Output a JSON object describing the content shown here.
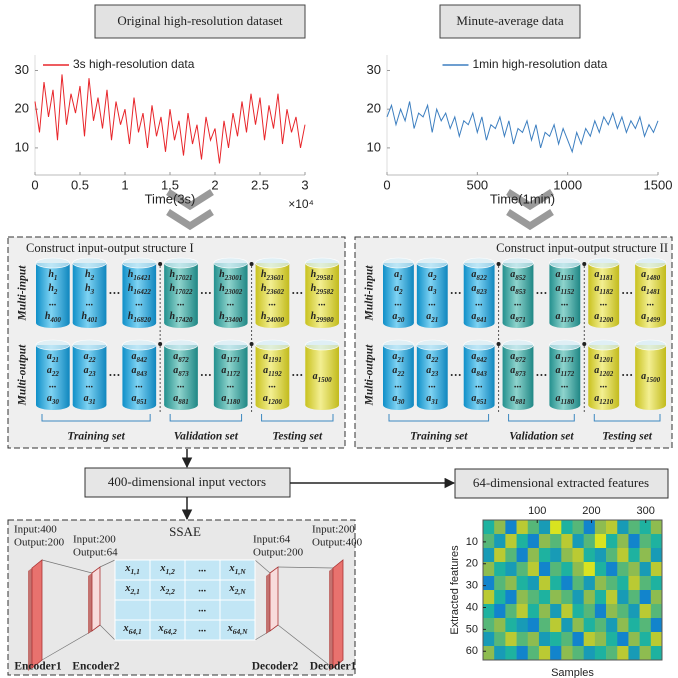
{
  "header": {
    "left_title": "Original high-resolution dataset",
    "right_title": "Minute-average data"
  },
  "chart_data": [
    {
      "type": "line",
      "x_label": "Time(3s)",
      "x_scale_label": "×10⁴",
      "x": [
        0,
        0.05,
        0.1,
        0.15,
        0.2,
        0.25,
        0.3,
        0.35,
        0.4,
        0.45,
        0.5,
        0.55,
        0.6,
        0.65,
        0.7,
        0.75,
        0.8,
        0.85,
        0.9,
        0.95,
        1,
        1.05,
        1.1,
        1.15,
        1.2,
        1.25,
        1.3,
        1.35,
        1.4,
        1.45,
        1.5,
        1.55,
        1.6,
        1.65,
        1.7,
        1.75,
        1.8,
        1.85,
        1.9,
        1.95,
        2,
        2.05,
        2.1,
        2.15,
        2.2,
        2.25,
        2.3,
        2.35,
        2.4,
        2.45,
        2.5,
        2.55,
        2.6,
        2.65,
        2.7,
        2.75,
        2.8,
        2.85,
        2.9,
        2.95,
        3
      ],
      "series": [
        {
          "name": "3s high-resolution data",
          "color": "#e8262b",
          "values": [
            22,
            14,
            27,
            18,
            25,
            12,
            29,
            16,
            24,
            19,
            26,
            13,
            28,
            17,
            23,
            15,
            25,
            12,
            22,
            16,
            20,
            11,
            23,
            14,
            19,
            10,
            21,
            13,
            18,
            9,
            20,
            12,
            17,
            8,
            19,
            11,
            16,
            7,
            18,
            12,
            15,
            6,
            17,
            10,
            19,
            13,
            22,
            14,
            24,
            16,
            23,
            12,
            21,
            15,
            24,
            11,
            20,
            14,
            18,
            10,
            16
          ]
        }
      ],
      "xlim": [
        0,
        3
      ],
      "xticks": [
        0,
        0.5,
        1,
        1.5,
        2,
        2.5,
        3
      ],
      "ylim": [
        3,
        34
      ],
      "yticks": [
        10,
        20,
        30
      ],
      "grid": false,
      "legend": "top-left"
    },
    {
      "type": "line",
      "x_label": "Time(1min)",
      "x": [
        0,
        25,
        50,
        75,
        100,
        125,
        150,
        175,
        200,
        225,
        250,
        275,
        300,
        325,
        350,
        375,
        400,
        425,
        450,
        475,
        500,
        525,
        550,
        575,
        600,
        625,
        650,
        675,
        700,
        725,
        750,
        775,
        800,
        825,
        850,
        875,
        900,
        925,
        950,
        975,
        1000,
        1025,
        1050,
        1075,
        1100,
        1125,
        1150,
        1175,
        1200,
        1225,
        1250,
        1275,
        1300,
        1325,
        1350,
        1375,
        1400,
        1425,
        1450,
        1475,
        1500
      ],
      "series": [
        {
          "name": "1min high-resolution data",
          "color": "#3d7fc0",
          "values": [
            18,
            21,
            16,
            20,
            17,
            22,
            15,
            19,
            18,
            21,
            14,
            20,
            17,
            19,
            15,
            18,
            13,
            17,
            16,
            19,
            14,
            18,
            12,
            16,
            15,
            18,
            13,
            17,
            11,
            15,
            14,
            17,
            12,
            16,
            10,
            14,
            13,
            16,
            11,
            15,
            12,
            9,
            14,
            11,
            15,
            13,
            17,
            14,
            18,
            16,
            19,
            15,
            18,
            14,
            17,
            15,
            18,
            13,
            16,
            14,
            17
          ]
        }
      ],
      "xlim": [
        0,
        1500
      ],
      "xticks": [
        0,
        500,
        1000,
        1500
      ],
      "ylim": [
        3,
        34
      ],
      "yticks": [
        10,
        20,
        30
      ],
      "grid": false,
      "legend": "top-center"
    },
    {
      "type": "heatmap",
      "x_label": "Samples",
      "y_label": "Extracted features",
      "xlim": [
        0,
        330
      ],
      "xticks": [
        100,
        200,
        300
      ],
      "ylim": [
        0,
        64
      ],
      "yticks": [
        10,
        20,
        30,
        40,
        50,
        60
      ],
      "y_reversed": true,
      "values": [
        [
          0.5,
          0.7,
          0.3,
          0.8,
          0.6,
          0.4,
          0.9,
          0.5,
          0.6,
          0.3,
          0.7,
          0.8,
          0.4,
          0.6,
          0.5,
          0.7
        ],
        [
          0.6,
          0.4,
          0.8,
          0.5,
          0.3,
          0.7,
          0.6,
          0.8,
          0.4,
          0.6,
          0.9,
          0.5,
          0.7,
          0.3,
          0.6,
          0.5
        ],
        [
          0.4,
          0.8,
          0.6,
          0.3,
          0.7,
          0.5,
          0.4,
          0.7,
          0.8,
          0.5,
          0.4,
          0.6,
          0.8,
          0.5,
          0.7,
          0.4
        ],
        [
          0.7,
          0.5,
          0.4,
          0.6,
          0.8,
          0.3,
          0.6,
          0.5,
          0.7,
          0.9,
          0.5,
          0.3,
          0.6,
          0.7,
          0.4,
          0.8
        ],
        [
          0.3,
          0.6,
          0.7,
          0.5,
          0.4,
          0.8,
          0.5,
          0.3,
          0.6,
          0.4,
          0.7,
          0.6,
          0.5,
          0.8,
          0.6,
          0.5
        ],
        [
          0.8,
          0.5,
          0.3,
          0.7,
          0.6,
          0.5,
          0.7,
          0.6,
          0.4,
          0.7,
          0.5,
          0.8,
          0.4,
          0.6,
          0.3,
          0.7
        ],
        [
          0.5,
          0.3,
          0.6,
          0.8,
          0.5,
          0.7,
          0.4,
          0.8,
          0.5,
          0.6,
          0.3,
          0.7,
          0.6,
          0.4,
          0.8,
          0.6
        ],
        [
          0.6,
          0.7,
          0.5,
          0.4,
          0.3,
          0.6,
          0.8,
          0.4,
          0.7,
          0.5,
          0.6,
          0.4,
          0.7,
          0.5,
          0.6,
          0.3
        ],
        [
          0.4,
          0.6,
          0.8,
          0.6,
          0.7,
          0.4,
          0.5,
          0.6,
          0.3,
          0.8,
          0.7,
          0.5,
          0.3,
          0.7,
          0.5,
          0.8
        ],
        [
          0.7,
          0.4,
          0.5,
          0.3,
          0.6,
          0.8,
          0.3,
          0.7,
          0.6,
          0.4,
          0.5,
          0.6,
          0.8,
          0.4,
          0.7,
          0.5
        ]
      ]
    }
  ],
  "structures": [
    {
      "title": "Construct input-output structure I",
      "row_labels": [
        "Multi-input",
        "Multi-output"
      ],
      "set_labels": [
        "Training set",
        "Validation set",
        "Testing set"
      ],
      "rows": [
        [
          [
            [
              "h1",
              "h2",
              "...",
              "h400"
            ],
            [
              "h2",
              "h3",
              "...",
              "h401"
            ],
            [
              "h16421",
              "h16422",
              "...",
              "h16820"
            ]
          ],
          [
            [
              "h17021",
              "h17022",
              "...",
              "h17420"
            ],
            [
              "h23001",
              "h23002",
              "...",
              "h23400"
            ]
          ],
          [
            [
              "h23601",
              "h23602",
              "...",
              "h24000"
            ],
            [
              "h29581",
              "h29582",
              "...",
              "h29980"
            ]
          ]
        ],
        [
          [
            [
              "a21",
              "a22",
              "...",
              "a30"
            ],
            [
              "a22",
              "a23",
              "...",
              "a31"
            ],
            [
              "a842",
              "a843",
              "...",
              "a851"
            ]
          ],
          [
            [
              "a872",
              "a873",
              "...",
              "a881"
            ],
            [
              "a1171",
              "a1172",
              "...",
              "a1180"
            ]
          ],
          [
            [
              "a1191",
              "a1192",
              "...",
              "a1200"
            ],
            [
              "a1500"
            ]
          ]
        ]
      ]
    },
    {
      "title": "Construct input-output structure II",
      "row_labels": [
        "Multi-input",
        "Multi-output"
      ],
      "set_labels": [
        "Training set",
        "Validation set",
        "Testing set"
      ],
      "rows": [
        [
          [
            [
              "a1",
              "a2",
              "...",
              "a20"
            ],
            [
              "a2",
              "a3",
              "...",
              "a21"
            ],
            [
              "a822",
              "a823",
              "...",
              "a841"
            ]
          ],
          [
            [
              "a852",
              "a853",
              "...",
              "a871"
            ],
            [
              "a1151",
              "a1152",
              "...",
              "a1170"
            ]
          ],
          [
            [
              "a1181",
              "a1182",
              "...",
              "a1200"
            ],
            [
              "a1480",
              "a1481",
              "...",
              "a1499"
            ]
          ]
        ],
        [
          [
            [
              "a21",
              "a22",
              "...",
              "a30"
            ],
            [
              "a22",
              "a23",
              "...",
              "a31"
            ],
            [
              "a842",
              "a843",
              "...",
              "a851"
            ]
          ],
          [
            [
              "a872",
              "a873",
              "...",
              "a881"
            ],
            [
              "a1171",
              "a1172",
              "...",
              "a1180"
            ]
          ],
          [
            [
              "a1201",
              "a1202",
              "...",
              "a1210"
            ],
            [
              "a1500"
            ]
          ]
        ]
      ]
    }
  ],
  "flow": {
    "input_vectors": "400-dimensional input vectors",
    "extracted_features": "64-dimensional extracted features"
  },
  "ssae": {
    "title": "SSAE",
    "layers": [
      {
        "label": "Encoder1",
        "io": [
          "Input:400",
          "Output:200"
        ]
      },
      {
        "label": "Encoder2",
        "io": [
          "Input:200",
          "Output:64"
        ]
      },
      {
        "label": "Decoder2",
        "io": [
          "Input:64",
          "Output:200"
        ]
      },
      {
        "label": "Decoder1",
        "io": [
          "Input:200",
          "Output:400"
        ]
      }
    ],
    "matrix": [
      [
        "x1,1",
        "x1,2",
        "...",
        "x1,N"
      ],
      [
        "x2,1",
        "x2,2",
        "...",
        "x2,N"
      ],
      [
        null,
        null,
        "...",
        null
      ],
      [
        "x64,1",
        "x64,2",
        "...",
        "x64,N"
      ]
    ]
  }
}
